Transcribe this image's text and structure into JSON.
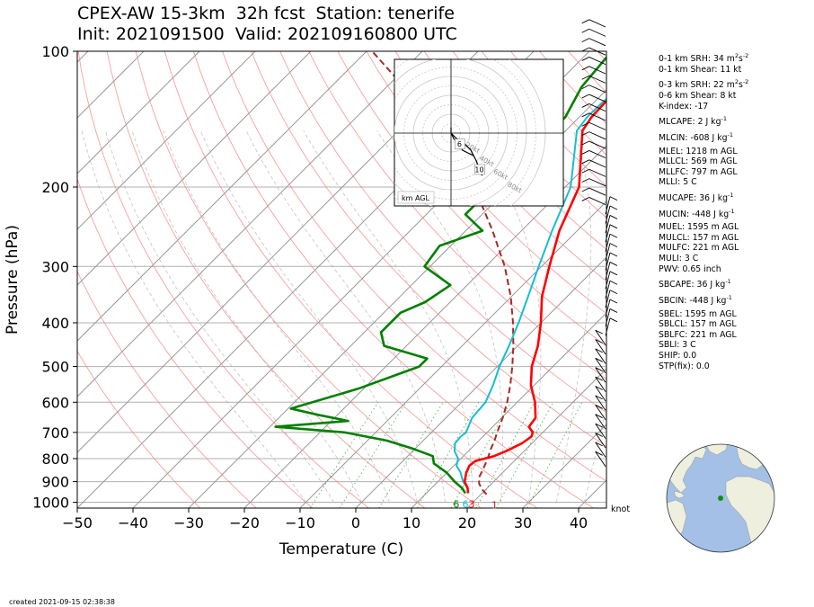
{
  "title": {
    "line1": "CPEX-AW 15-3km  32h fcst  Station: tenerife",
    "line2": "Init: 2021091500  Valid: 202109160800 UTC"
  },
  "footer": {
    "created": "created 2021-09-15 02:38:38"
  },
  "stats": [
    {
      "label": "0-1 km SRH: 34 m",
      "sup": "2",
      "mid": "s",
      "sup2": "-2"
    },
    {
      "label": "0-1 km Shear: 11 kt"
    },
    {
      "label": "0-3 km SRH: 22 m",
      "sup": "2",
      "mid": "s",
      "sup2": "-2",
      "gap": true
    },
    {
      "label": "0-6 km Shear: 8 kt"
    },
    {
      "label": "K-index: -17"
    },
    {
      "label": "MLCAPE: 2 J kg",
      "sup": "-1",
      "gap": true
    },
    {
      "label": "MLCIN: -608 J kg",
      "sup": "-1",
      "gap": true
    },
    {
      "label": "MLEL: 1218 m AGL",
      "gap": true
    },
    {
      "label": "MLLCL: 569 m AGL"
    },
    {
      "label": "MLLFC: 797 m AGL"
    },
    {
      "label": "MLLI: 5 C"
    },
    {
      "label": "MUCAPE: 36 J kg",
      "sup": "-1",
      "gap": true
    },
    {
      "label": "MUCIN: -448 J kg",
      "sup": "-1",
      "gap": true
    },
    {
      "label": "MUEL: 1595 m AGL",
      "gap": true
    },
    {
      "label": "MULCL: 157 m AGL"
    },
    {
      "label": "MULFC: 221 m AGL"
    },
    {
      "label": "MULI: 3 C"
    },
    {
      "label": "PWV: 0.65 inch"
    },
    {
      "label": "SBCAPE: 36 J kg",
      "sup": "-1",
      "gap": true
    },
    {
      "label": "SBCIN: -448 J kg",
      "sup": "-1",
      "gap": true
    },
    {
      "label": "SBEL: 1595 m AGL",
      "gap": true
    },
    {
      "label": "SBLCL: 157 m AGL"
    },
    {
      "label": "SBLFC: 221 m AGL"
    },
    {
      "label": "SBLI: 3 C"
    },
    {
      "label": "SHIP: 0.0"
    },
    {
      "label": "STP(fix): 0.0"
    }
  ],
  "chart_data": {
    "type": "line",
    "xlabel": "Temperature (C)",
    "ylabel": "Pressure (hPa)",
    "xlim": [
      -50,
      45
    ],
    "ylim": [
      1030,
      100
    ],
    "y_scale": "log",
    "x_ticks": [
      -50,
      -40,
      -30,
      -20,
      -10,
      0,
      10,
      20,
      30,
      40
    ],
    "y_ticks": [
      100,
      200,
      300,
      400,
      500,
      600,
      700,
      800,
      900,
      1000
    ],
    "colors": {
      "temperature": "#ff0000",
      "dewpoint": "#008000",
      "wetbulb": "#17becf",
      "parcel": "#a52a2a",
      "dry_adiabat": "#f08080",
      "moist_adiabat": "#a9a9a9",
      "mixing_ratio": "#2ca02c",
      "isotherm": "#999999"
    },
    "series": [
      {
        "id": "temperature",
        "p": [
          955,
          930,
          900,
          860,
          830,
          810,
          790,
          770,
          740,
          715,
          700,
          680,
          650,
          600,
          550,
          500,
          450,
          400,
          350,
          300,
          250,
          200,
          150,
          140,
          130,
          120,
          110,
          100
        ],
        "t": [
          17.5,
          16.5,
          14.8,
          13.5,
          12.8,
          13.0,
          15.5,
          16.8,
          18.2,
          18.7,
          18.2,
          16.5,
          16.1,
          13.2,
          9.4,
          6.2,
          3.6,
          0.0,
          -4.5,
          -8.6,
          -13.2,
          -17.5,
          -27.0,
          -27.8,
          -28.0,
          -27.5,
          -25.5,
          -22.0
        ]
      },
      {
        "id": "wetbulb",
        "p": [
          955,
          930,
          900,
          860,
          830,
          800,
          770,
          740,
          715,
          700,
          650,
          600,
          550,
          500,
          450,
          400,
          350,
          300,
          250,
          200,
          150,
          140,
          130,
          120,
          110,
          100
        ],
        "t": [
          17.5,
          16.5,
          14.5,
          12.5,
          10.5,
          9.5,
          7.5,
          6.2,
          6.0,
          6.2,
          4.7,
          4.3,
          2.6,
          0.4,
          -1.6,
          -4.0,
          -7.0,
          -10.5,
          -14.5,
          -19.0,
          -28.0,
          -28.6,
          -28.5,
          -28.0,
          -26.0,
          -22.5
        ]
      },
      {
        "id": "dewpoint",
        "p": [
          955,
          930,
          900,
          860,
          820,
          790,
          760,
          730,
          700,
          680,
          660,
          640,
          620,
          560,
          500,
          480,
          450,
          420,
          380,
          360,
          330,
          300,
          270,
          250,
          230,
          200,
          180,
          160,
          140,
          120,
          100
        ],
        "t": [
          17.0,
          15.5,
          13.0,
          10.0,
          6.0,
          4.5,
          -0.5,
          -6.5,
          -15.5,
          -29.0,
          -17.0,
          -23.5,
          -29.5,
          -21.0,
          -14.0,
          -14.0,
          -24.0,
          -27.0,
          -27.0,
          -24.5,
          -23.0,
          -31.0,
          -32.0,
          -27.0,
          -33.0,
          -33.0,
          -33.0,
          -33.0,
          -32.5,
          -35.0,
          -36.0
        ]
      },
      {
        "id": "parcel",
        "dashed": true,
        "p": [
          960,
          940,
          910,
          880,
          850,
          820,
          790,
          760,
          730,
          700,
          650,
          600,
          550,
          500,
          450,
          400,
          350,
          300,
          250,
          200,
          150,
          100
        ],
        "t": [
          21.0,
          19.6,
          17.8,
          16.6,
          16.0,
          15.3,
          14.5,
          13.6,
          12.8,
          11.8,
          10.2,
          8.2,
          5.7,
          2.7,
          -0.8,
          -5.0,
          -10.1,
          -16.6,
          -25.2,
          -36.3,
          -52.0,
          -79.0
        ]
      }
    ],
    "surface_labels": {
      "dewpoint": "6",
      "wetbulb": "6",
      "temperature": "3",
      "parcel": "1"
    },
    "wind_barbs_unit": "knot",
    "hodograph": {
      "ring_labels": [
        "20kt",
        "40kt",
        "60kt",
        "80kt"
      ],
      "height_markers": [
        "6",
        "10"
      ],
      "label": "km AGL",
      "u": [
        0,
        1,
        3,
        4,
        6,
        8,
        9,
        10,
        11,
        9,
        7,
        5,
        2,
        0,
        0
      ],
      "v": [
        0,
        -2,
        -4,
        -6,
        -7,
        -8,
        -10,
        -13,
        -15,
        -10,
        -6,
        -4,
        -2,
        0,
        2
      ]
    },
    "station_location": {
      "lon": -16.5,
      "lat": 28.3
    }
  }
}
